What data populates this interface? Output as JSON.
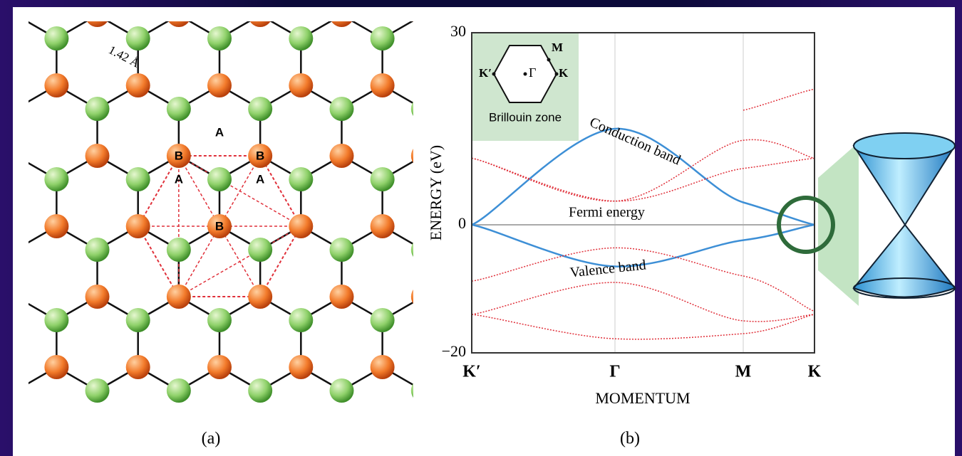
{
  "lattice": {
    "bond_length": "1.42 Å",
    "label_a": "A",
    "label_b": "B",
    "caption": "(a)"
  },
  "chart_data": {
    "type": "line",
    "caption": "(b)",
    "ylabel": "ENERGY (eV)",
    "xlabel": "MOMENTUM",
    "categories": [
      "K′",
      "Γ",
      "M",
      "K"
    ],
    "ylim": [
      -20,
      30
    ],
    "yticks": [
      {
        "value": 30,
        "label": "30"
      },
      {
        "value": 0,
        "label": "0"
      },
      {
        "value": -20,
        "label": "−20"
      }
    ],
    "series": [
      {
        "name": "Conduction band",
        "color": "#3d8fd6",
        "values": [
          0,
          15,
          3.5,
          0
        ]
      },
      {
        "name": "Valence band",
        "color": "#3d8fd6",
        "values": [
          0,
          -6.5,
          -2.4,
          0
        ]
      },
      {
        "color": "#e0303a",
        "values": [
          10.4,
          3.7,
          13.2,
          10.4
        ]
      },
      {
        "color": "#e0303a",
        "values": [
          10.4,
          3.7,
          8.8,
          10.4
        ]
      },
      {
        "color": "#e0303a",
        "values": [
          null,
          null,
          17.9,
          21.2
        ]
      },
      {
        "color": "#e0303a",
        "values": [
          -8.8,
          -3.6,
          -8,
          -13.5
        ]
      },
      {
        "color": "#e0303a",
        "values": [
          -14,
          -9,
          -15,
          -14
        ]
      },
      {
        "color": "#e0303a",
        "values": [
          -14,
          -17.8,
          -17,
          -14
        ]
      }
    ],
    "annotations": {
      "fermi": "Fermi energy",
      "inset_title": "Brillouin zone",
      "inset_m": "M",
      "inset_k": "K",
      "inset_k_prime": "K′",
      "inset_gamma": "Γ"
    }
  }
}
